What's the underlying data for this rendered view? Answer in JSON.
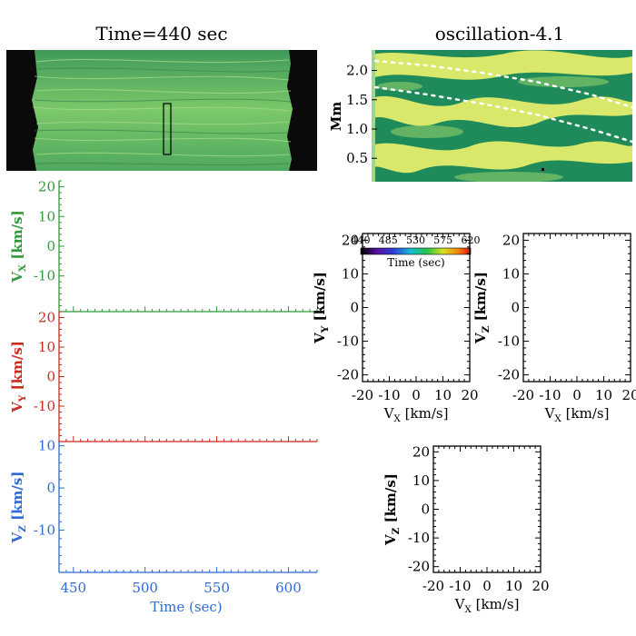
{
  "colors": {
    "vx": "#2e9a3a",
    "vy": "#cc2a1e",
    "vz": "#2d6ad6",
    "axis": "#000000",
    "image_bg": "#0a0a0a",
    "dark_green": "#1c7a4e",
    "mid_green": "#5fb85a",
    "yellow": "#e8ef6a"
  },
  "image_panel": {
    "title": "Time=440 sec",
    "icon": "solar-intensity-image"
  },
  "slit_panel": {
    "title": "oscillation-4.1",
    "ylabel": "Mm",
    "icon": "time-distance-map"
  },
  "legend": {
    "ticks": [
      "440",
      "485",
      "530",
      "575",
      "620"
    ],
    "title": "Time (sec)"
  },
  "chart_data": [
    {
      "name": "vx-time-series",
      "type": "line",
      "title": "",
      "ylabel": "V_X [km/s]",
      "ylabel_main": "V",
      "ylabel_sub": "X",
      "ylabel_unit": " [km/s]",
      "xlim": [
        440,
        620
      ],
      "ylim": [
        -22,
        22
      ],
      "yticks": [
        -10,
        0,
        10,
        20
      ],
      "ytick_labels": [
        "-10",
        "0",
        "10",
        "20"
      ],
      "series": []
    },
    {
      "name": "vy-time-series",
      "type": "line",
      "ylabel": "V_Y [km/s]",
      "ylabel_main": "V",
      "ylabel_sub": "Y",
      "ylabel_unit": " [km/s]",
      "xlim": [
        440,
        620
      ],
      "ylim": [
        -22,
        22
      ],
      "yticks": [
        -10,
        0,
        10,
        20
      ],
      "ytick_labels": [
        "-10",
        "0",
        "10",
        "20"
      ],
      "series": []
    },
    {
      "name": "vz-time-series",
      "type": "line",
      "ylabel": "V_Z [km/s]",
      "ylabel_main": "V",
      "ylabel_sub": "Z",
      "ylabel_unit": " [km/s]",
      "xlim": [
        440,
        620
      ],
      "ylim": [
        -20,
        11
      ],
      "yticks": [
        -10,
        0,
        10
      ],
      "ytick_labels": [
        "-10",
        "0",
        "10"
      ],
      "xticks": [
        450,
        500,
        550,
        600
      ],
      "xtick_labels": [
        "450",
        "500",
        "550",
        "600"
      ],
      "xlabel": "Time (sec)",
      "series": []
    },
    {
      "name": "vy-vs-vx-scatter",
      "type": "scatter",
      "xlabel": "V_X [km/s]",
      "xlabel_main": "V",
      "xlabel_sub": "X",
      "xlabel_unit": " [km/s]",
      "ylabel": "V_Y [km/s]",
      "ylabel_main": "V",
      "ylabel_sub": "Y",
      "ylabel_unit": " [km/s]",
      "xlim": [
        -20,
        20
      ],
      "ylim": [
        -22,
        22
      ],
      "xticks": [
        -20,
        -10,
        0,
        10,
        20
      ],
      "xtick_labels": [
        "-20",
        "-10",
        "0",
        "10",
        "20"
      ],
      "yticks": [
        -20,
        -10,
        0,
        10,
        20
      ],
      "ytick_labels": [
        "-20",
        "-10",
        "0",
        "10",
        "20"
      ],
      "series": []
    },
    {
      "name": "vz-vs-vx-scatter-right",
      "type": "scatter",
      "xlabel": "V_X [km/s]",
      "xlabel_main": "V",
      "xlabel_sub": "X",
      "xlabel_unit": " [km/s]",
      "ylabel": "V_Z [km/s]",
      "ylabel_main": "V",
      "ylabel_sub": "Z",
      "ylabel_unit": " [km/s]",
      "xlim": [
        -20,
        20
      ],
      "ylim": [
        -22,
        22
      ],
      "xticks": [
        -20,
        -10,
        0,
        10,
        20
      ],
      "xtick_labels": [
        "-20",
        "-10",
        "0",
        "10",
        "20"
      ],
      "yticks": [
        -20,
        -10,
        0,
        10,
        20
      ],
      "ytick_labels": [
        "-20",
        "-10",
        "0",
        "10",
        "20"
      ],
      "series": []
    },
    {
      "name": "vz-vs-vx-scatter-bottom",
      "type": "scatter",
      "xlabel": "V_X [km/s]",
      "xlabel_main": "V",
      "xlabel_sub": "X",
      "xlabel_unit": " [km/s]",
      "ylabel": "V_Z [km/s]",
      "ylabel_main": "V",
      "ylabel_sub": "Z",
      "ylabel_unit": " [km/s]",
      "xlim": [
        -20,
        20
      ],
      "ylim": [
        -22,
        22
      ],
      "xticks": [
        -20,
        -10,
        0,
        10,
        20
      ],
      "xtick_labels": [
        "-20",
        "-10",
        "0",
        "10",
        "20"
      ],
      "yticks": [
        -20,
        -10,
        0,
        10,
        20
      ],
      "ytick_labels": [
        "-20",
        "-10",
        "0",
        "10",
        "20"
      ],
      "series": []
    },
    {
      "name": "slit-map",
      "type": "heatmap",
      "ylabel": "Mm",
      "yticks": [
        0.5,
        1.0,
        1.5,
        2.0
      ],
      "ytick_labels": [
        "0.5",
        "1.0",
        "1.5",
        "2.0"
      ],
      "ylim": [
        0.1,
        2.35
      ]
    }
  ]
}
